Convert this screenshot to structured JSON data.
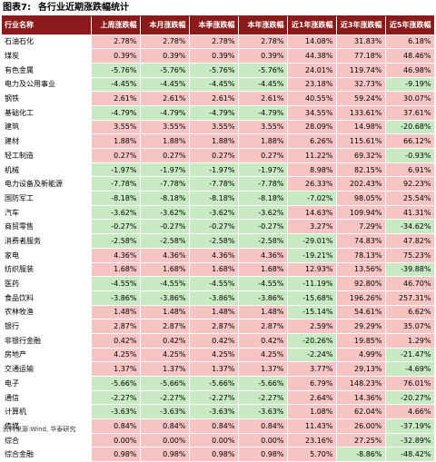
{
  "title": {
    "number": "图表7:",
    "text": "各行业近期涨跌幅统计"
  },
  "table": {
    "headers": [
      "行业名称",
      "上周涨跌幅",
      "本月涨跌幅",
      "本季涨跌幅",
      "本年涨跌幅",
      "近1年涨跌幅",
      "近3年涨跌幅",
      "近5年涨跌幅"
    ],
    "rows": [
      [
        "石油石化",
        "2.78%",
        "2.78%",
        "2.78%",
        "2.78%",
        "14.08%",
        "31.83%",
        "6.18%"
      ],
      [
        "煤炭",
        "0.39%",
        "0.39%",
        "0.39%",
        "0.39%",
        "44.38%",
        "77.18%",
        "48.46%"
      ],
      [
        "有色金属",
        "-5.76%",
        "-5.76%",
        "-5.76%",
        "-5.76%",
        "24.01%",
        "119.74%",
        "46.98%"
      ],
      [
        "电力及公用事业",
        "-4.45%",
        "-4.45%",
        "-4.45%",
        "-4.45%",
        "23.18%",
        "32.73%",
        "-9.19%"
      ],
      [
        "钢铁",
        "2.61%",
        "2.61%",
        "2.61%",
        "2.61%",
        "40.55%",
        "59.24%",
        "30.07%"
      ],
      [
        "基础化工",
        "-4.79%",
        "-4.79%",
        "-4.79%",
        "-4.79%",
        "34.55%",
        "133.61%",
        "37.61%"
      ],
      [
        "建筑",
        "3.55%",
        "3.55%",
        "3.55%",
        "3.55%",
        "28.09%",
        "14.98%",
        "-20.68%"
      ],
      [
        "建材",
        "1.88%",
        "1.88%",
        "1.88%",
        "1.88%",
        "6.26%",
        "115.61%",
        "66.12%"
      ],
      [
        "轻工制造",
        "0.27%",
        "0.27%",
        "0.27%",
        "0.27%",
        "11.22%",
        "69.32%",
        "-0.93%"
      ],
      [
        "机械",
        "-1.97%",
        "-1.97%",
        "-1.97%",
        "-1.97%",
        "8.98%",
        "82.15%",
        "6.91%"
      ],
      [
        "电力设备及新能源",
        "-7.78%",
        "-7.78%",
        "-7.78%",
        "-7.78%",
        "26.33%",
        "202.43%",
        "92.23%"
      ],
      [
        "国防军工",
        "-8.18%",
        "-8.18%",
        "-8.18%",
        "-8.18%",
        "-7.02%",
        "98.05%",
        "25.54%"
      ],
      [
        "汽车",
        "-3.62%",
        "-3.62%",
        "-3.62%",
        "-3.62%",
        "14.63%",
        "109.94%",
        "41.31%"
      ],
      [
        "商贸零售",
        "-0.27%",
        "-0.27%",
        "-0.27%",
        "-0.27%",
        "3.27%",
        "7.29%",
        "-34.62%"
      ],
      [
        "消费者服务",
        "-2.58%",
        "-2.58%",
        "-2.58%",
        "-2.58%",
        "-29.01%",
        "74.83%",
        "47.82%"
      ],
      [
        "家电",
        "4.36%",
        "4.36%",
        "4.36%",
        "4.36%",
        "-19.21%",
        "78.13%",
        "75.23%"
      ],
      [
        "纺织服装",
        "1.68%",
        "1.68%",
        "1.68%",
        "1.68%",
        "12.93%",
        "13.56%",
        "-39.88%"
      ],
      [
        "医药",
        "-4.55%",
        "-4.55%",
        "-4.55%",
        "-4.55%",
        "-11.19%",
        "92.80%",
        "46.70%"
      ],
      [
        "食品饮料",
        "-3.86%",
        "-3.86%",
        "-3.86%",
        "-3.86%",
        "-15.68%",
        "196.26%",
        "257.31%"
      ],
      [
        "农林牧渔",
        "1.48%",
        "1.48%",
        "1.48%",
        "1.48%",
        "-15.14%",
        "54.61%",
        "6.62%"
      ],
      [
        "银行",
        "2.87%",
        "2.87%",
        "2.87%",
        "2.87%",
        "2.59%",
        "29.29%",
        "35.07%"
      ],
      [
        "非银行金融",
        "0.42%",
        "0.42%",
        "0.42%",
        "0.42%",
        "-20.26%",
        "19.85%",
        "1.29%"
      ],
      [
        "房地产",
        "4.25%",
        "4.25%",
        "4.25%",
        "4.25%",
        "-2.24%",
        "4.99%",
        "-21.47%"
      ],
      [
        "交通运输",
        "1.37%",
        "1.37%",
        "1.37%",
        "1.37%",
        "3.77%",
        "29.13%",
        "-4.69%"
      ],
      [
        "电子",
        "-5.66%",
        "-5.66%",
        "-5.66%",
        "-5.66%",
        "6.79%",
        "148.23%",
        "76.01%"
      ],
      [
        "通信",
        "-2.27%",
        "-2.27%",
        "-2.27%",
        "-2.27%",
        "2.64%",
        "14.36%",
        "-20.27%"
      ],
      [
        "计算机",
        "-3.63%",
        "-3.63%",
        "-3.63%",
        "-3.63%",
        "1.08%",
        "62.04%",
        "4.66%"
      ],
      [
        "传媒",
        "0.84%",
        "0.84%",
        "0.84%",
        "0.84%",
        "11.43%",
        "26.00%",
        "-37.19%"
      ],
      [
        "综合",
        "0.00%",
        "0.00%",
        "0.00%",
        "0.00%",
        "23.16%",
        "27.25%",
        "-32.89%"
      ],
      [
        "综合金融",
        "0.98%",
        "0.98%",
        "0.98%",
        "0.98%",
        "5.70%",
        "-8.86%",
        "-48.42%"
      ]
    ]
  },
  "source": "资料来源:Wind, 华泰研究",
  "colors": {
    "header_bg": "#8b1a1a",
    "positive_bg": "#f7c4c4",
    "negative_bg": "#c8eac3"
  }
}
